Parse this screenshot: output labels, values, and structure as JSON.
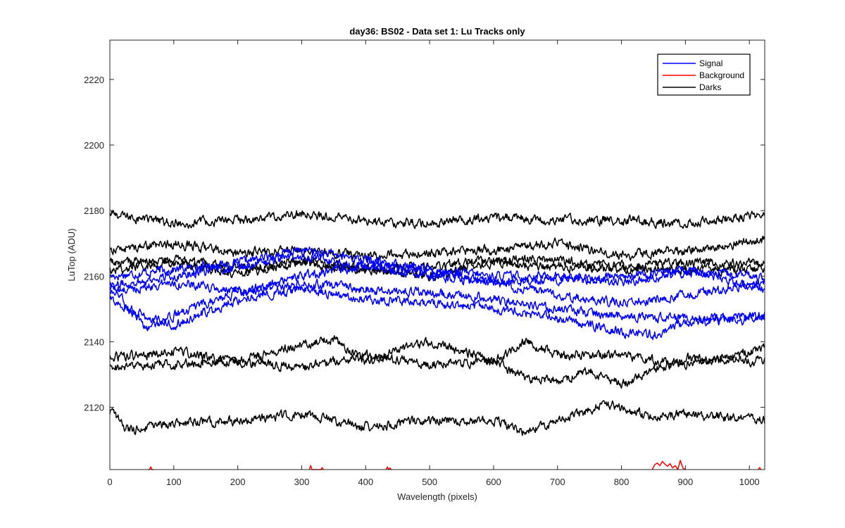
{
  "chart_data": {
    "type": "line",
    "title": "day36: BS02 - Data set 1: Lu Tracks only",
    "xlabel": "Wavelength (pixels)",
    "ylabel": "LuTop (ADU)",
    "xlim": [
      0,
      1024
    ],
    "ylim": [
      2101,
      2232
    ],
    "xticks": [
      0,
      100,
      200,
      300,
      400,
      500,
      600,
      700,
      800,
      900,
      1000
    ],
    "yticks": [
      2120,
      2140,
      2160,
      2180,
      2200,
      2220
    ],
    "grid": false,
    "legend_position": "top-right",
    "legend": [
      {
        "label": "Signal",
        "color": "#0000ff"
      },
      {
        "label": "Background",
        "color": "#ff0000"
      },
      {
        "label": "Darks",
        "color": "#000000"
      }
    ],
    "series": [
      {
        "group": "Signal",
        "color": "#0000ff",
        "x": [
          0,
          100,
          200,
          300,
          400,
          500,
          600,
          700,
          800,
          900,
          1024
        ],
        "values": [
          2160,
          2162,
          2164,
          2168,
          2165,
          2162,
          2160,
          2160,
          2158,
          2161,
          2160
        ]
      },
      {
        "group": "Signal",
        "color": "#0000ff",
        "x": [
          0,
          100,
          200,
          300,
          400,
          500,
          600,
          700,
          800,
          900,
          1024
        ],
        "values": [
          2157,
          2160,
          2163,
          2166,
          2163,
          2160,
          2158,
          2159,
          2160,
          2162,
          2156
        ]
      },
      {
        "group": "Signal",
        "color": "#0000ff",
        "x": [
          0,
          100,
          200,
          300,
          400,
          500,
          600,
          700,
          800,
          900,
          1024
        ],
        "values": [
          2155,
          2158,
          2155,
          2160,
          2163,
          2162,
          2158,
          2154,
          2152,
          2154,
          2158
        ]
      },
      {
        "group": "Signal",
        "color": "#0000ff",
        "x": [
          0,
          30,
          60,
          100,
          200,
          300,
          400,
          500,
          600,
          700,
          800,
          900,
          1024
        ],
        "values": [
          2158,
          2150,
          2144,
          2148,
          2155,
          2158,
          2156,
          2155,
          2153,
          2150,
          2148,
          2147,
          2148
        ]
      },
      {
        "group": "Signal",
        "color": "#0000ff",
        "x": [
          0,
          50,
          100,
          200,
          300,
          400,
          500,
          600,
          700,
          800,
          850,
          900,
          1024
        ],
        "values": [
          2153,
          2148,
          2145,
          2153,
          2156,
          2153,
          2152,
          2150,
          2147,
          2143,
          2142,
          2146,
          2147
        ]
      },
      {
        "group": "Darks",
        "color": "#000000",
        "x": [
          0,
          100,
          200,
          300,
          400,
          500,
          600,
          700,
          800,
          900,
          1024
        ],
        "values": [
          2179,
          2176,
          2177,
          2179,
          2177,
          2176,
          2178,
          2177,
          2177,
          2176,
          2179
        ]
      },
      {
        "group": "Darks",
        "color": "#000000",
        "x": [
          0,
          100,
          200,
          300,
          400,
          500,
          600,
          700,
          800,
          900,
          1024
        ],
        "values": [
          2168,
          2170,
          2167,
          2168,
          2166,
          2167,
          2168,
          2170,
          2166,
          2168,
          2171
        ]
      },
      {
        "group": "Darks",
        "color": "#000000",
        "x": [
          0,
          100,
          200,
          300,
          400,
          500,
          600,
          700,
          800,
          900,
          1024
        ],
        "values": [
          2164,
          2165,
          2162,
          2165,
          2162,
          2163,
          2165,
          2165,
          2163,
          2164,
          2164
        ]
      },
      {
        "group": "Darks",
        "color": "#000000",
        "x": [
          0,
          100,
          200,
          300,
          400,
          500,
          600,
          700,
          800,
          900,
          1024
        ],
        "values": [
          2162,
          2164,
          2161,
          2164,
          2162,
          2160,
          2164,
          2163,
          2162,
          2162,
          2162
        ]
      },
      {
        "group": "Darks",
        "color": "#000000",
        "x": [
          0,
          100,
          200,
          300,
          350,
          400,
          500,
          600,
          650,
          700,
          800,
          900,
          1024
        ],
        "values": [
          2135,
          2137,
          2134,
          2139,
          2141,
          2134,
          2140,
          2134,
          2140,
          2136,
          2136,
          2133,
          2138
        ]
      },
      {
        "group": "Darks",
        "color": "#000000",
        "x": [
          0,
          100,
          200,
          300,
          400,
          500,
          600,
          650,
          700,
          750,
          800,
          900,
          1024
        ],
        "values": [
          2132,
          2133,
          2134,
          2132,
          2136,
          2133,
          2134,
          2129,
          2128,
          2131,
          2127,
          2135,
          2134
        ]
      },
      {
        "group": "Darks",
        "color": "#000000",
        "x": [
          0,
          30,
          100,
          200,
          300,
          400,
          500,
          600,
          650,
          700,
          780,
          850,
          900,
          1024
        ],
        "values": [
          2119,
          2113,
          2115,
          2116,
          2118,
          2114,
          2116,
          2116,
          2112,
          2116,
          2121,
          2117,
          2118,
          2116
        ]
      },
      {
        "group": "Background",
        "color": "#ff0000",
        "x": [
          60,
          62,
          64,
          66,
          68
        ],
        "values": [
          2101,
          2101,
          2101.8,
          2101,
          2101
        ]
      },
      {
        "group": "Background",
        "color": "#ff0000",
        "x": [
          312,
          314,
          316,
          330,
          332,
          334
        ],
        "values": [
          2101,
          2102.2,
          2101,
          2101,
          2101.6,
          2101
        ]
      },
      {
        "group": "Background",
        "color": "#ff0000",
        "x": [
          432,
          434,
          436,
          438,
          440
        ],
        "values": [
          2101,
          2101.8,
          2101,
          2101.5,
          2101
        ]
      },
      {
        "group": "Background",
        "color": "#ff0000",
        "x": [
          848,
          852,
          856,
          860,
          864,
          868,
          872,
          876,
          880,
          884,
          888,
          892,
          896,
          900
        ],
        "values": [
          2101,
          2102.5,
          2103,
          2102.2,
          2103.5,
          2102.6,
          2102,
          2102.8,
          2101.5,
          2102.2,
          2101,
          2103.8,
          2101.5,
          2101
        ]
      },
      {
        "group": "Background",
        "color": "#ff0000",
        "x": [
          1014,
          1016,
          1018
        ],
        "values": [
          2101,
          2101.6,
          2101
        ]
      }
    ]
  }
}
